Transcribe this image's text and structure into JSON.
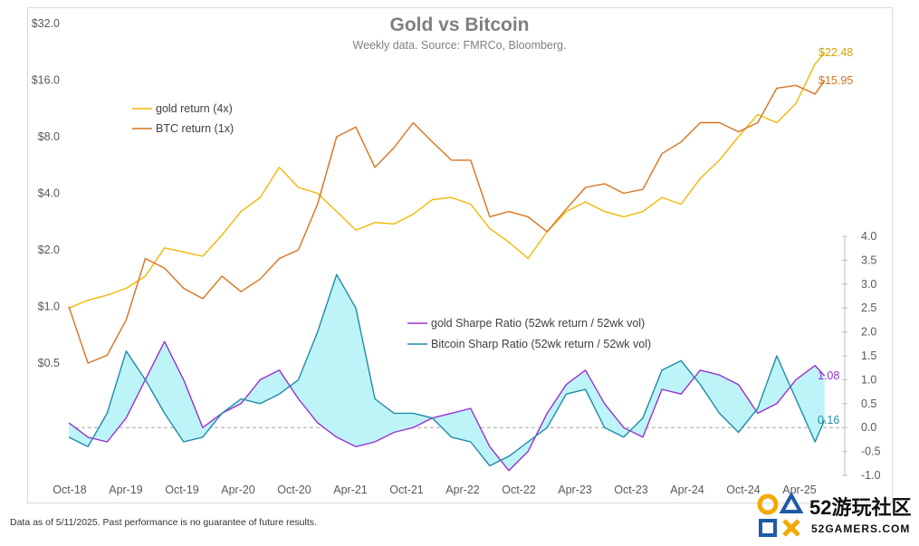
{
  "header": {
    "title": "Gold vs Bitcoin",
    "subtitle": "Weekly data.  Source: FMRCo, Bloomberg."
  },
  "footnote": "Data as of 5/11/2025. Past performance is no guarantee of future results.",
  "watermark": {
    "badge": "52",
    "cn": "游玩社区",
    "en": "52GAMERS.COM"
  },
  "legend": {
    "top": [
      {
        "label": "gold return (4x)",
        "color": "#F2B705"
      },
      {
        "label": "BTC return (1x)",
        "color": "#D9731E"
      }
    ],
    "bottom": [
      {
        "label": "gold Sharpe Ratio (52wk return / 52wk vol)",
        "color": "#9B30D0"
      },
      {
        "label": "Bitcoin Sharp Ratio (52wk return / 52wk vol)",
        "color": "#1F8BA8"
      }
    ]
  },
  "end_labels": {
    "gold_return": "$22.48",
    "btc_return": "$15.95",
    "gold_sharpe": "1.08",
    "btc_sharpe": "0.16"
  },
  "chart_data": {
    "type": "line",
    "x_tick_labels": [
      "Oct-18",
      "Apr-19",
      "Oct-19",
      "Apr-20",
      "Oct-20",
      "Apr-21",
      "Oct-21",
      "Apr-22",
      "Oct-22",
      "Apr-23",
      "Oct-23",
      "Apr-24",
      "Oct-24",
      "Apr-25"
    ],
    "left_axis": {
      "scale": "log2",
      "ticks": [
        "$0.5",
        "$1.0",
        "$2.0",
        "$4.0",
        "$8.0",
        "$16.0",
        "$32.0"
      ],
      "tick_values": [
        0.5,
        1,
        2,
        4,
        8,
        16,
        32
      ]
    },
    "right_axis": {
      "ticks": [
        "-1.0",
        "-0.5",
        "0.0",
        "0.5",
        "1.0",
        "1.5",
        "2.0",
        "2.5",
        "3.0",
        "3.5",
        "4.0"
      ],
      "range": [
        -1.0,
        4.0
      ]
    },
    "series": [
      {
        "name": "gold return (4x)",
        "axis": "left",
        "color": "#F2B705",
        "x": [
          "2018-10",
          "2018-12",
          "2019-02",
          "2019-04",
          "2019-06",
          "2019-08",
          "2019-10",
          "2019-12",
          "2020-02",
          "2020-04",
          "2020-06",
          "2020-08",
          "2020-10",
          "2020-12",
          "2021-02",
          "2021-04",
          "2021-06",
          "2021-08",
          "2021-10",
          "2021-12",
          "2022-02",
          "2022-04",
          "2022-06",
          "2022-08",
          "2022-10",
          "2022-12",
          "2023-02",
          "2023-04",
          "2023-06",
          "2023-08",
          "2023-10",
          "2023-12",
          "2024-02",
          "2024-04",
          "2024-06",
          "2024-08",
          "2024-10",
          "2024-12",
          "2025-02",
          "2025-04",
          "2025-05"
        ],
        "values": [
          0.98,
          1.08,
          1.15,
          1.25,
          1.45,
          2.05,
          1.95,
          1.85,
          2.4,
          3.2,
          3.8,
          5.5,
          4.3,
          4.0,
          3.2,
          2.55,
          2.8,
          2.75,
          3.1,
          3.7,
          3.8,
          3.5,
          2.6,
          2.2,
          1.8,
          2.5,
          3.2,
          3.6,
          3.2,
          3.0,
          3.2,
          3.8,
          3.5,
          4.8,
          6.0,
          8.0,
          10.5,
          9.5,
          12.0,
          19.5,
          22.48
        ]
      },
      {
        "name": "BTC return (1x)",
        "axis": "left",
        "color": "#D9731E",
        "x": [
          "2018-10",
          "2018-12",
          "2019-02",
          "2019-04",
          "2019-06",
          "2019-08",
          "2019-10",
          "2019-12",
          "2020-02",
          "2020-04",
          "2020-06",
          "2020-08",
          "2020-10",
          "2020-12",
          "2021-02",
          "2021-04",
          "2021-06",
          "2021-08",
          "2021-10",
          "2021-12",
          "2022-02",
          "2022-04",
          "2022-06",
          "2022-08",
          "2022-10",
          "2022-12",
          "2023-02",
          "2023-04",
          "2023-06",
          "2023-08",
          "2023-10",
          "2023-12",
          "2024-02",
          "2024-04",
          "2024-06",
          "2024-08",
          "2024-10",
          "2024-12",
          "2025-02",
          "2025-04",
          "2025-05"
        ],
        "values": [
          1.0,
          0.5,
          0.55,
          0.85,
          1.8,
          1.6,
          1.25,
          1.1,
          1.45,
          1.2,
          1.4,
          1.8,
          2.0,
          3.5,
          8.0,
          9.0,
          5.5,
          7.0,
          9.5,
          7.5,
          6.0,
          6.0,
          3.0,
          3.2,
          3.0,
          2.5,
          3.3,
          4.3,
          4.5,
          4.0,
          4.2,
          6.5,
          7.5,
          9.5,
          9.5,
          8.5,
          9.5,
          14.5,
          15.0,
          13.5,
          15.95
        ]
      },
      {
        "name": "gold Sharpe Ratio (52wk return / 52wk vol)",
        "axis": "right",
        "color": "#9B30D0",
        "x": [
          "2018-10",
          "2018-12",
          "2019-02",
          "2019-04",
          "2019-06",
          "2019-08",
          "2019-10",
          "2019-12",
          "2020-02",
          "2020-04",
          "2020-06",
          "2020-08",
          "2020-10",
          "2020-12",
          "2021-02",
          "2021-04",
          "2021-06",
          "2021-08",
          "2021-10",
          "2021-12",
          "2022-02",
          "2022-04",
          "2022-06",
          "2022-08",
          "2022-10",
          "2022-12",
          "2023-02",
          "2023-04",
          "2023-06",
          "2023-08",
          "2023-10",
          "2023-12",
          "2024-02",
          "2024-04",
          "2024-06",
          "2024-08",
          "2024-10",
          "2024-12",
          "2025-02",
          "2025-04",
          "2025-05"
        ],
        "values": [
          0.1,
          -0.2,
          -0.3,
          0.2,
          1.0,
          1.8,
          1.0,
          0.0,
          0.3,
          0.5,
          1.0,
          1.2,
          0.6,
          0.1,
          -0.2,
          -0.4,
          -0.3,
          -0.1,
          0.0,
          0.2,
          0.3,
          0.4,
          -0.4,
          -0.9,
          -0.5,
          0.3,
          0.9,
          1.2,
          0.5,
          0.0,
          -0.2,
          0.8,
          0.7,
          1.2,
          1.1,
          0.9,
          0.3,
          0.5,
          1.0,
          1.3,
          1.08
        ]
      },
      {
        "name": "Bitcoin Sharp Ratio (52wk return / 52wk vol)",
        "axis": "right",
        "color": "#1F8BA8",
        "x": [
          "2018-10",
          "2018-12",
          "2019-02",
          "2019-04",
          "2019-06",
          "2019-08",
          "2019-10",
          "2019-12",
          "2020-02",
          "2020-04",
          "2020-06",
          "2020-08",
          "2020-10",
          "2020-12",
          "2021-02",
          "2021-04",
          "2021-06",
          "2021-08",
          "2021-10",
          "2021-12",
          "2022-02",
          "2022-04",
          "2022-06",
          "2022-08",
          "2022-10",
          "2022-12",
          "2023-02",
          "2023-04",
          "2023-06",
          "2023-08",
          "2023-10",
          "2023-12",
          "2024-02",
          "2024-04",
          "2024-06",
          "2024-08",
          "2024-10",
          "2024-12",
          "2025-02",
          "2025-04",
          "2025-05"
        ],
        "values": [
          -0.2,
          -0.4,
          0.3,
          1.6,
          1.0,
          0.3,
          -0.3,
          -0.2,
          0.3,
          0.6,
          0.5,
          0.7,
          1.0,
          2.0,
          3.2,
          2.5,
          0.6,
          0.3,
          0.3,
          0.2,
          -0.2,
          -0.3,
          -0.8,
          -0.6,
          -0.3,
          0.0,
          0.7,
          0.8,
          0.0,
          -0.2,
          0.2,
          1.2,
          1.4,
          0.9,
          0.3,
          -0.1,
          0.4,
          1.5,
          0.6,
          -0.3,
          0.16
        ]
      }
    ],
    "fill_between_sharpe": "#BDF4F8",
    "zero_line": "dashed"
  }
}
